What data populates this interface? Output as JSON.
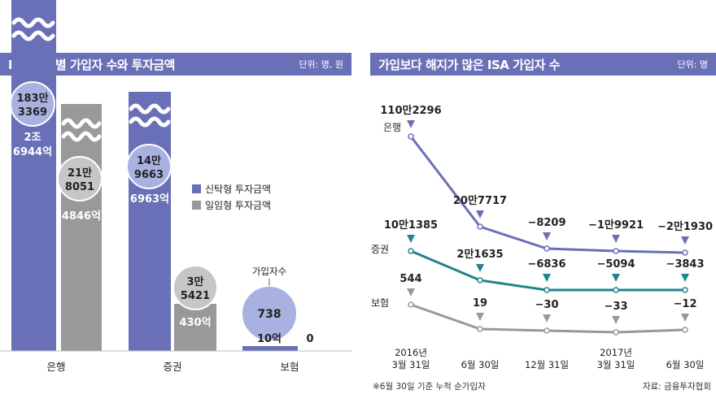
{
  "left_panel": {
    "title": "ISA 업권별 가입자 수와 투자금액",
    "unit": "단위: 명, 원"
  },
  "right_panel": {
    "title": "가입보다 해지가 많은 ISA 가입자 수",
    "unit": "단위: 명"
  },
  "footnote": "※6월 30일 기준 누적 순가입자",
  "source": "자료: 금융투자협회",
  "colors": {
    "trust": "#6a70b7",
    "discretionary": "#999999",
    "circle_blue": "#a9b1e1",
    "circle_gray": "#c6c6c6",
    "line_bank": "#6a70b7",
    "line_securities": "#21848c",
    "line_insurance": "#999999"
  },
  "chart_data": [
    {
      "type": "bar",
      "title": "ISA 업권별 가입자 수와 투자금액",
      "unit": "단위: 명, 원",
      "categories": [
        "은행",
        "증권",
        "보험"
      ],
      "series": [
        {
          "name": "신탁형 투자금액",
          "values_label": [
            "2조\n6944억",
            "6963억",
            "10억"
          ],
          "values": [
            26944,
            6963,
            10
          ]
        },
        {
          "name": "일임형 투자금액",
          "values_label": [
            "4846억",
            "430억",
            "0"
          ],
          "values": [
            4846,
            430,
            0
          ]
        }
      ],
      "subscribers": {
        "label": "가입자수",
        "trust": [
          "183만\n3369",
          "14만\n9663",
          "738"
        ],
        "discretionary": [
          "21만\n8051",
          "3만\n5421",
          ""
        ]
      },
      "legend": [
        "신탁형  투자금액",
        "일임형  투자금액"
      ],
      "bank_trust_amount": [
        "2조",
        "6944억"
      ],
      "bank_trust_subs": [
        "183만",
        "3369"
      ],
      "bank_disc_subs": [
        "21만",
        "8051"
      ],
      "sec_trust_subs": [
        "14만",
        "9663"
      ],
      "sec_disc_subs": [
        "3만",
        "5421"
      ],
      "ins_trust_subs": "738",
      "ins_trust_amount": "10억",
      "ins_disc_amount": "0",
      "bank_disc_amount": "4846억",
      "sec_trust_amount": "6963억",
      "sec_disc_amount": "430억"
    },
    {
      "type": "line",
      "title": "가입보다 해지가 많은 ISA 가입자 수",
      "unit": "단위: 명",
      "x": [
        "2016년 3월 31일",
        "6월 30일",
        "12월 31일",
        "2017년 3월 31일",
        "6월 30일"
      ],
      "x_ticks": [
        [
          "2016년",
          "3월 31일"
        ],
        [
          "",
          "6월  30일"
        ],
        [
          "",
          "12월  31일"
        ],
        [
          "2017년",
          "3월  31일"
        ],
        [
          "",
          "6월  30일"
        ]
      ],
      "series": [
        {
          "name": "은행",
          "values": [
            1102296,
            207717,
            -8209,
            -19921,
            -21930
          ],
          "labels": [
            "110만2296",
            "20만7717",
            "−8209",
            "−1만9921",
            "−2만1930"
          ]
        },
        {
          "name": "증권",
          "values": [
            101385,
            21635,
            -6836,
            -5094,
            -3843
          ],
          "labels": [
            "10만1385",
            "2만1635",
            "−6836",
            "−5094",
            "−3843"
          ]
        },
        {
          "name": "보험",
          "values": [
            544,
            19,
            -30,
            -33,
            -12
          ],
          "labels": [
            "544",
            "19",
            "−30",
            "−33",
            "−12"
          ]
        }
      ]
    }
  ]
}
